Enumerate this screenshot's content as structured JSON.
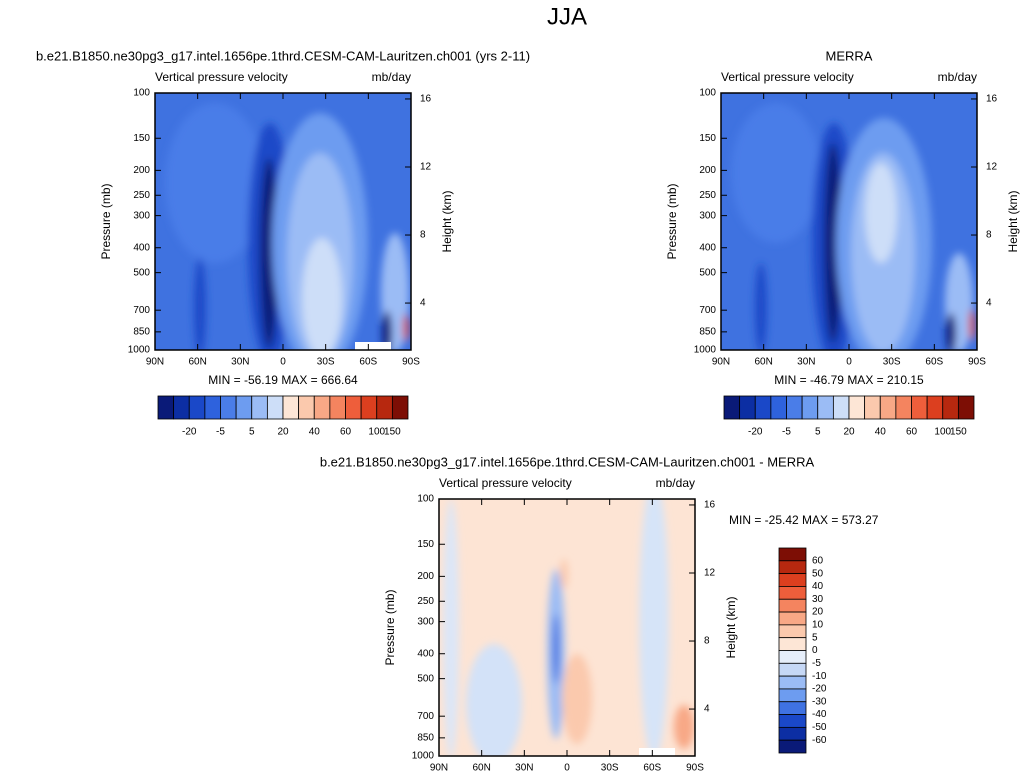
{
  "title": "JJA",
  "chart_data": [
    {
      "type": "contour",
      "title": "b.e21.B1850.ne30pg3_g17.intel.1656pe.1thrd.CESM-CAM-Lauritzen.ch001 (yrs 2-11)",
      "left_label": "Vertical pressure velocity",
      "right_label": "mb/day",
      "ylabel": "Pressure (mb)",
      "y2label": "Height (km)",
      "stats": "MIN = -56.19   MAX = 666.64",
      "xlim": [
        90,
        -90
      ],
      "xticks": [
        {
          "value": 90,
          "label": "90N"
        },
        {
          "value": 60,
          "label": "60N"
        },
        {
          "value": 30,
          "label": "30N"
        },
        0,
        {
          "value": -30,
          "label": "30S"
        },
        {
          "value": -60,
          "label": "60S"
        },
        {
          "value": -90,
          "label": "90S"
        }
      ],
      "ylim": [
        1000,
        100
      ],
      "log_y": true,
      "yticks": [
        100,
        150,
        200,
        250,
        300,
        400,
        500,
        700,
        850,
        1000
      ],
      "y2lim": [
        1.24,
        16.35
      ],
      "y2ticks": [
        4,
        8,
        12,
        16
      ],
      "colorbar": {
        "orientation": "horizontal",
        "colors": [
          "#0a1a78",
          "#0c2ea3",
          "#1a48c8",
          "#2e62dd",
          "#4a7de8",
          "#6d9cf0",
          "#9bbcf5",
          "#cddef8",
          "#fde6d6",
          "#fbc9ad",
          "#f8a886",
          "#f4845f",
          "#ee5e3b",
          "#dc3f1f",
          "#b7280f",
          "#7d0e05"
        ],
        "labels": [
          -20,
          -5,
          5,
          20,
          40,
          60,
          100,
          150
        ]
      }
    },
    {
      "type": "contour",
      "title": "MERRA",
      "left_label": "Vertical pressure velocity",
      "right_label": "mb/day",
      "ylabel": "Pressure (mb)",
      "y2label": "Height (km)",
      "stats": "MIN = -46.79   MAX = 210.15",
      "xlim": [
        90,
        -90
      ],
      "xticks": [
        {
          "value": 90,
          "label": "90N"
        },
        {
          "value": 60,
          "label": "60N"
        },
        {
          "value": 30,
          "label": "30N"
        },
        0,
        {
          "value": -30,
          "label": "30S"
        },
        {
          "value": -60,
          "label": "60S"
        },
        {
          "value": -90,
          "label": "90S"
        }
      ],
      "ylim": [
        1000,
        100
      ],
      "log_y": true,
      "yticks": [
        100,
        150,
        200,
        250,
        300,
        400,
        500,
        700,
        850,
        1000
      ],
      "y2lim": [
        1.24,
        16.35
      ],
      "y2ticks": [
        4,
        8,
        12,
        16
      ],
      "colorbar": {
        "orientation": "horizontal",
        "colors": [
          "#0a1a78",
          "#0c2ea3",
          "#1a48c8",
          "#2e62dd",
          "#4a7de8",
          "#6d9cf0",
          "#9bbcf5",
          "#cddef8",
          "#fde6d6",
          "#fbc9ad",
          "#f8a886",
          "#f4845f",
          "#ee5e3b",
          "#dc3f1f",
          "#b7280f",
          "#7d0e05"
        ],
        "labels": [
          -20,
          -5,
          5,
          20,
          40,
          60,
          100,
          150
        ]
      }
    },
    {
      "type": "contour",
      "title": "b.e21.B1850.ne30pg3_g17.intel.1656pe.1thrd.CESM-CAM-Lauritzen.ch001 - MERRA",
      "left_label": "Vertical pressure velocity",
      "right_label": "mb/day",
      "ylabel": "Pressure (mb)",
      "y2label": "Height (km)",
      "stats": "MIN = -25.42   MAX = 573.27",
      "xlim": [
        90,
        -90
      ],
      "xticks": [
        {
          "value": 90,
          "label": "90N"
        },
        {
          "value": 60,
          "label": "60N"
        },
        {
          "value": 30,
          "label": "30N"
        },
        0,
        {
          "value": -30,
          "label": "30S"
        },
        {
          "value": -60,
          "label": "60S"
        },
        {
          "value": -90,
          "label": "90S"
        }
      ],
      "ylim": [
        1000,
        100
      ],
      "log_y": true,
      "yticks": [
        100,
        150,
        200,
        250,
        300,
        400,
        500,
        700,
        850,
        1000
      ],
      "y2lim": [
        1.24,
        16.35
      ],
      "y2ticks": [
        4,
        8,
        12,
        16
      ],
      "colorbar": {
        "orientation": "vertical",
        "colors": [
          "#7d0e05",
          "#b7280f",
          "#dc3f1f",
          "#ee5e3b",
          "#f4845f",
          "#f8a886",
          "#fbc9ad",
          "#fde6d6",
          "#e6eefa",
          "#c6d8f6",
          "#9bbcf5",
          "#6d9cf0",
          "#3f72e2",
          "#1a48c8",
          "#0c2ea3",
          "#0a1a78"
        ],
        "labels": [
          60,
          50,
          40,
          30,
          20,
          10,
          5,
          0,
          -5,
          -10,
          -20,
          -30,
          -40,
          -50,
          -60
        ]
      }
    }
  ]
}
